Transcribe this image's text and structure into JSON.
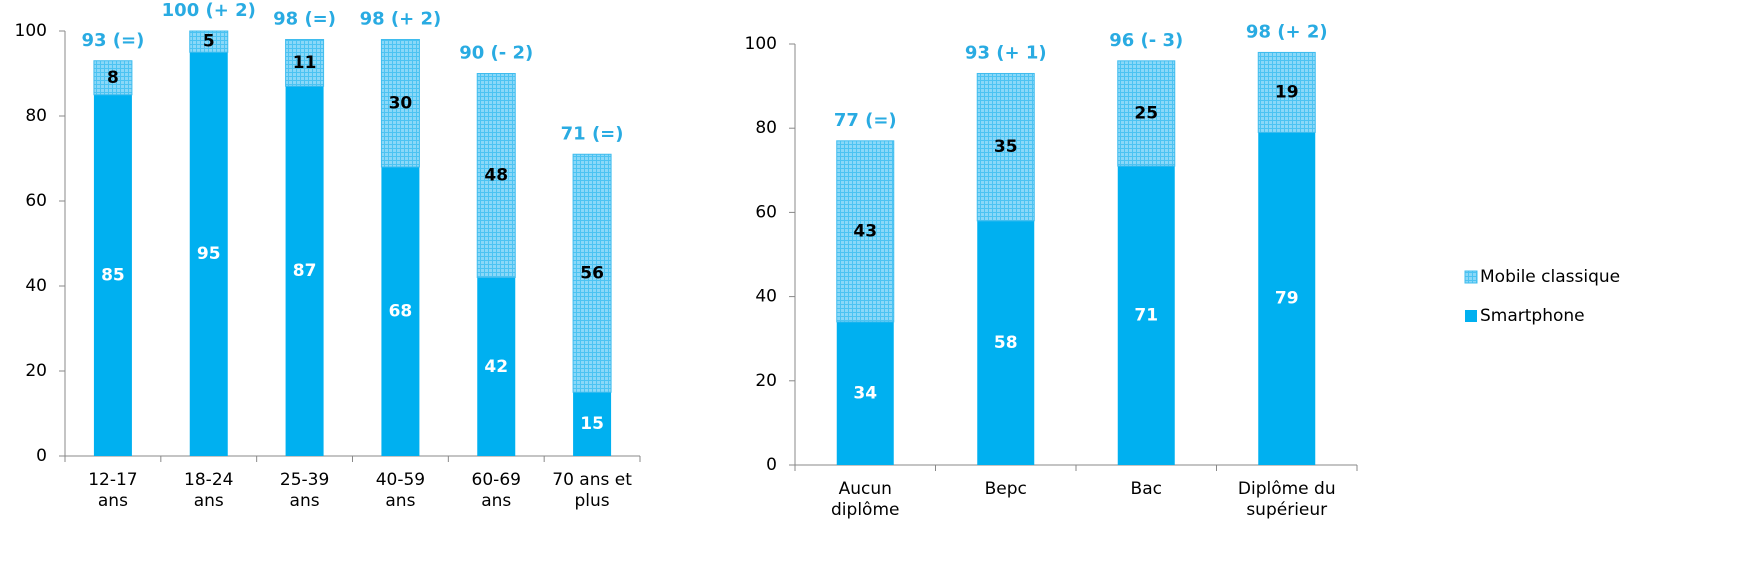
{
  "chart_data": [
    {
      "type": "stacked_bar",
      "categories": [
        "12-17\nans",
        "18-24\nans",
        "25-39\nans",
        "40-59\nans",
        "60-69\nans",
        "70 ans et\nplus"
      ],
      "series": [
        {
          "color": "#00b0f0",
          "values": [
            85,
            95,
            87,
            68,
            42,
            15
          ]
        },
        {
          "color": "#7fd3f7",
          "values": [
            8,
            5,
            11,
            30,
            48,
            56
          ]
        }
      ],
      "top_labels": [
        "93 (=)",
        "100 (+ 2)",
        "98 (=)",
        "98 (+ 2)",
        "90 (- 2)",
        "71 (=)"
      ],
      "ylim": [
        0,
        100
      ],
      "yticks": [
        0,
        20,
        40,
        60,
        80,
        100
      ]
    },
    {
      "type": "stacked_bar",
      "categories": [
        "Aucun\ndiplôme",
        "Bepc",
        "Bac",
        "Diplôme du\nsupérieur"
      ],
      "series": [
        {
          "name": "Smartphone",
          "color": "#00b0f0",
          "values": [
            34,
            58,
            71,
            79
          ]
        },
        {
          "name": "Mobile classique",
          "color": "#7fd3f7",
          "values": [
            43,
            35,
            25,
            19
          ]
        }
      ],
      "top_labels": [
        "77 (=)",
        "93 (+ 1)",
        "96 (- 3)",
        "98 (+ 2)"
      ],
      "ylim": [
        0,
        100
      ],
      "yticks": [
        0,
        20,
        40,
        60,
        80,
        100
      ]
    }
  ]
}
